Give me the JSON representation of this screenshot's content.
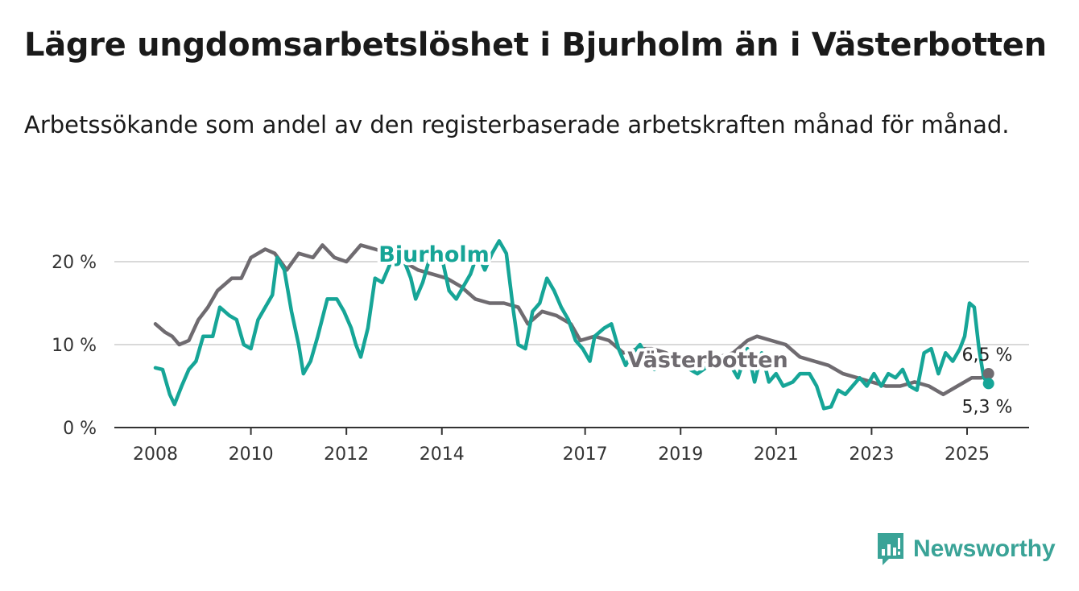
{
  "header": {
    "title": "Lägre ungdomsarbetslöshet i Bjurholm än i Västerbotten",
    "subtitle": "Arbetssökande som andel av den registerbaserade arbetskraften månad för månad."
  },
  "brand": {
    "name": "Newsworthy",
    "icon": "newsworthy-logo-icon",
    "color": "#3aa397"
  },
  "chart_data": {
    "type": "line",
    "x_unit": "year",
    "xlim": [
      2007.8,
      2026.3
    ],
    "ylim": [
      0,
      22
    ],
    "yticks": [
      0,
      10,
      20
    ],
    "ytick_labels": [
      "0 %",
      "10 %",
      "20 %"
    ],
    "xticks": [
      2008,
      2010,
      2012,
      2014,
      2017,
      2019,
      2021,
      2023,
      2025
    ],
    "xtick_labels": [
      "2008",
      "2010",
      "2012",
      "2014",
      "2017",
      "2019",
      "2021",
      "2023",
      "2025"
    ],
    "grid": "horizontal",
    "series": [
      {
        "name": "Västerbotten",
        "color": "#6f6b70",
        "end_label": "6,5 %",
        "points": [
          [
            2008.0,
            12.5
          ],
          [
            2008.2,
            11.5
          ],
          [
            2008.35,
            11.0
          ],
          [
            2008.5,
            10.0
          ],
          [
            2008.7,
            10.5
          ],
          [
            2008.9,
            13.0
          ],
          [
            2009.1,
            14.5
          ],
          [
            2009.3,
            16.5
          ],
          [
            2009.6,
            18.0
          ],
          [
            2009.8,
            18.0
          ],
          [
            2010.0,
            20.5
          ],
          [
            2010.3,
            21.5
          ],
          [
            2010.5,
            21.0
          ],
          [
            2010.75,
            19.0
          ],
          [
            2011.0,
            21.0
          ],
          [
            2011.3,
            20.5
          ],
          [
            2011.5,
            22.0
          ],
          [
            2011.75,
            20.5
          ],
          [
            2012.0,
            20.0
          ],
          [
            2012.3,
            22.0
          ],
          [
            2012.6,
            21.5
          ],
          [
            2012.9,
            21.0
          ],
          [
            2013.2,
            20.0
          ],
          [
            2013.5,
            19.0
          ],
          [
            2013.8,
            18.5
          ],
          [
            2014.1,
            18.0
          ],
          [
            2014.4,
            17.0
          ],
          [
            2014.7,
            15.5
          ],
          [
            2015.0,
            15.0
          ],
          [
            2015.3,
            15.0
          ],
          [
            2015.6,
            14.5
          ],
          [
            2015.8,
            12.5
          ],
          [
            2016.1,
            14.0
          ],
          [
            2016.4,
            13.5
          ],
          [
            2016.7,
            12.5
          ],
          [
            2016.9,
            10.5
          ],
          [
            2017.2,
            11.0
          ],
          [
            2017.5,
            10.5
          ],
          [
            2017.8,
            9.0
          ],
          [
            2018.1,
            9.5
          ],
          [
            2018.4,
            9.5
          ],
          [
            2018.7,
            9.0
          ],
          [
            2018.9,
            8.0
          ],
          [
            2019.2,
            8.5
          ],
          [
            2019.5,
            8.0
          ],
          [
            2019.8,
            8.5
          ],
          [
            2020.1,
            9.0
          ],
          [
            2020.4,
            10.5
          ],
          [
            2020.6,
            11.0
          ],
          [
            2020.9,
            10.5
          ],
          [
            2021.2,
            10.0
          ],
          [
            2021.5,
            8.5
          ],
          [
            2021.8,
            8.0
          ],
          [
            2022.1,
            7.5
          ],
          [
            2022.4,
            6.5
          ],
          [
            2022.7,
            6.0
          ],
          [
            2023.0,
            5.5
          ],
          [
            2023.3,
            5.0
          ],
          [
            2023.6,
            5.0
          ],
          [
            2023.9,
            5.5
          ],
          [
            2024.2,
            5.0
          ],
          [
            2024.5,
            4.0
          ],
          [
            2024.8,
            5.0
          ],
          [
            2025.1,
            6.0
          ],
          [
            2025.3,
            6.0
          ],
          [
            2025.45,
            6.5
          ]
        ]
      },
      {
        "name": "Bjurholm",
        "color": "#16a597",
        "end_label": "5,3 %",
        "points": [
          [
            2008.0,
            7.2
          ],
          [
            2008.15,
            7.0
          ],
          [
            2008.3,
            4.0
          ],
          [
            2008.4,
            2.8
          ],
          [
            2008.55,
            5.0
          ],
          [
            2008.7,
            7.0
          ],
          [
            2008.85,
            8.0
          ],
          [
            2009.0,
            11.0
          ],
          [
            2009.2,
            11.0
          ],
          [
            2009.35,
            14.5
          ],
          [
            2009.55,
            13.5
          ],
          [
            2009.7,
            13.0
          ],
          [
            2009.85,
            10.0
          ],
          [
            2010.0,
            9.5
          ],
          [
            2010.15,
            13.0
          ],
          [
            2010.3,
            14.5
          ],
          [
            2010.45,
            16.0
          ],
          [
            2010.55,
            20.5
          ],
          [
            2010.7,
            19.0
          ],
          [
            2010.85,
            14.0
          ],
          [
            2011.0,
            10.0
          ],
          [
            2011.1,
            6.5
          ],
          [
            2011.25,
            8.0
          ],
          [
            2011.4,
            11.0
          ],
          [
            2011.6,
            15.5
          ],
          [
            2011.8,
            15.5
          ],
          [
            2011.95,
            14.0
          ],
          [
            2012.1,
            12.0
          ],
          [
            2012.2,
            10.0
          ],
          [
            2012.3,
            8.5
          ],
          [
            2012.45,
            12.0
          ],
          [
            2012.6,
            18.0
          ],
          [
            2012.75,
            17.5
          ],
          [
            2012.9,
            19.5
          ],
          [
            2013.0,
            20.5
          ],
          [
            2013.1,
            21.5
          ],
          [
            2013.25,
            19.5
          ],
          [
            2013.35,
            18.0
          ],
          [
            2013.45,
            15.5
          ],
          [
            2013.6,
            17.5
          ],
          [
            2013.75,
            20.5
          ],
          [
            2013.85,
            22.0
          ],
          [
            2014.0,
            20.5
          ],
          [
            2014.15,
            16.5
          ],
          [
            2014.3,
            15.5
          ],
          [
            2014.45,
            17.0
          ],
          [
            2014.6,
            18.5
          ],
          [
            2014.75,
            21.0
          ],
          [
            2014.9,
            19.0
          ],
          [
            2015.05,
            21.0
          ],
          [
            2015.2,
            22.5
          ],
          [
            2015.35,
            21.0
          ],
          [
            2015.5,
            14.0
          ],
          [
            2015.6,
            10.0
          ],
          [
            2015.75,
            9.5
          ],
          [
            2015.9,
            14.0
          ],
          [
            2016.05,
            15.0
          ],
          [
            2016.2,
            18.0
          ],
          [
            2016.35,
            16.5
          ],
          [
            2016.5,
            14.5
          ],
          [
            2016.65,
            13.0
          ],
          [
            2016.8,
            10.5
          ],
          [
            2016.95,
            9.5
          ],
          [
            2017.1,
            8.0
          ],
          [
            2017.2,
            11.0
          ],
          [
            2017.4,
            12.0
          ],
          [
            2017.55,
            12.5
          ],
          [
            2017.7,
            9.5
          ],
          [
            2017.85,
            7.5
          ],
          [
            2018.0,
            9.0
          ],
          [
            2018.15,
            10.0
          ],
          [
            2018.3,
            8.5
          ],
          [
            2018.45,
            7.0
          ],
          [
            2018.6,
            8.0
          ],
          [
            2018.8,
            8.0
          ],
          [
            2019.0,
            8.5
          ],
          [
            2019.2,
            7.0
          ],
          [
            2019.35,
            6.5
          ],
          [
            2019.6,
            7.5
          ],
          [
            2019.8,
            7.5
          ],
          [
            2020.0,
            8.0
          ],
          [
            2020.2,
            6.0
          ],
          [
            2020.4,
            9.5
          ],
          [
            2020.55,
            5.5
          ],
          [
            2020.7,
            9.0
          ],
          [
            2020.85,
            5.5
          ],
          [
            2021.0,
            6.5
          ],
          [
            2021.15,
            5.0
          ],
          [
            2021.35,
            5.5
          ],
          [
            2021.5,
            6.5
          ],
          [
            2021.7,
            6.5
          ],
          [
            2021.85,
            5.0
          ],
          [
            2022.0,
            2.3
          ],
          [
            2022.15,
            2.5
          ],
          [
            2022.3,
            4.5
          ],
          [
            2022.45,
            4.0
          ],
          [
            2022.6,
            5.0
          ],
          [
            2022.75,
            6.0
          ],
          [
            2022.9,
            5.0
          ],
          [
            2023.05,
            6.5
          ],
          [
            2023.2,
            5.0
          ],
          [
            2023.35,
            6.5
          ],
          [
            2023.5,
            6.0
          ],
          [
            2023.65,
            7.0
          ],
          [
            2023.8,
            5.0
          ],
          [
            2023.95,
            4.5
          ],
          [
            2024.1,
            9.0
          ],
          [
            2024.25,
            9.5
          ],
          [
            2024.4,
            6.5
          ],
          [
            2024.55,
            9.0
          ],
          [
            2024.7,
            8.0
          ],
          [
            2024.85,
            9.5
          ],
          [
            2024.95,
            11.0
          ],
          [
            2025.05,
            15.0
          ],
          [
            2025.15,
            14.5
          ],
          [
            2025.25,
            9.5
          ],
          [
            2025.35,
            6.0
          ],
          [
            2025.45,
            5.3
          ]
        ]
      }
    ]
  }
}
